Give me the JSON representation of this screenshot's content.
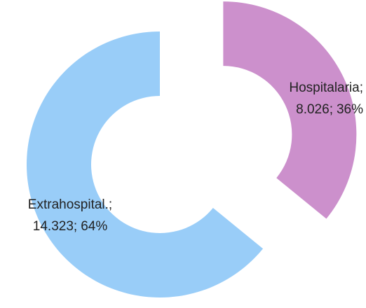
{
  "chart_data": {
    "type": "donut",
    "categories": [
      "Hospitalaria",
      "Extrahospital."
    ],
    "values": [
      8026,
      14323
    ],
    "value_labels": [
      "8.026",
      "14.323"
    ],
    "percentages": [
      36,
      64
    ],
    "percentage_labels": [
      "36%",
      "64%"
    ],
    "label_separator": ";",
    "colors": [
      "#cc90cc",
      "#99cdf8"
    ],
    "exploded_slice": 0
  }
}
